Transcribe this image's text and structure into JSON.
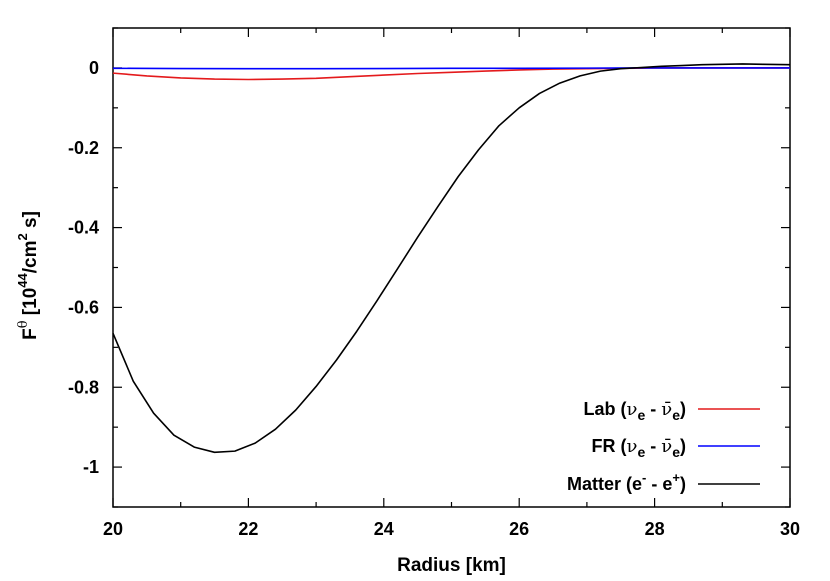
{
  "chart_data": {
    "type": "line",
    "xlabel": "Radius [km]",
    "ylabel": {
      "parts": [
        "F",
        "θ",
        " [10",
        "44",
        "/cm",
        "2",
        " s]"
      ]
    },
    "xlim": [
      20,
      30
    ],
    "ylim": [
      -1.1,
      0.1
    ],
    "x_ticks": [
      20,
      22,
      24,
      26,
      28,
      30
    ],
    "y_ticks": [
      0,
      -0.2,
      -0.4,
      -0.6,
      -0.8,
      -1
    ],
    "x_tick_labels": [
      "20",
      "22",
      "24",
      "26",
      "28",
      "30"
    ],
    "y_tick_labels": [
      "0",
      "-0.2",
      "-0.4",
      "-0.6",
      "-0.8",
      "-1"
    ],
    "grid": false,
    "legend_position": "bottom-right",
    "series": [
      {
        "name": "Lab (νe - ν̄e)",
        "legend_parts": [
          "Lab (",
          "ν",
          "e",
          " - ",
          "ν̄",
          "e",
          ")"
        ],
        "color": "#e41a1c",
        "x": [
          20.0,
          20.5,
          21.0,
          21.5,
          22.0,
          22.5,
          23.0,
          23.5,
          24.0,
          24.5,
          25.0,
          25.5,
          26.0,
          26.5,
          27.0,
          27.5,
          28.0,
          28.5,
          29.0,
          29.5,
          30.0
        ],
        "y": [
          -0.013,
          -0.02,
          -0.025,
          -0.028,
          -0.029,
          -0.028,
          -0.026,
          -0.022,
          -0.018,
          -0.014,
          -0.011,
          -0.008,
          -0.005,
          -0.003,
          -0.002,
          -0.001,
          0.0,
          0.0,
          0.0,
          0.0,
          0.0
        ]
      },
      {
        "name": "FR (νe - ν̄e)",
        "legend_parts": [
          "FR (",
          "ν",
          "e",
          " - ",
          "ν̄",
          "e",
          ")"
        ],
        "color": "#0000ff",
        "x": [
          20.0,
          21.0,
          22.0,
          23.0,
          24.0,
          25.0,
          26.0,
          27.0,
          28.0,
          29.0,
          30.0
        ],
        "y": [
          -0.001,
          -0.0015,
          -0.002,
          -0.002,
          -0.0015,
          -0.001,
          -0.001,
          -0.0005,
          0.0,
          0.0,
          0.0
        ]
      },
      {
        "name": "Matter (e- - e+)",
        "legend_parts": [
          "Matter (e",
          "-",
          " - e",
          "+",
          ")"
        ],
        "color": "#000000",
        "x": [
          20.0,
          20.3,
          20.6,
          20.9,
          21.2,
          21.5,
          21.8,
          22.1,
          22.4,
          22.7,
          23.0,
          23.3,
          23.6,
          23.9,
          24.2,
          24.5,
          24.8,
          25.1,
          25.4,
          25.7,
          26.0,
          26.3,
          26.6,
          26.9,
          27.2,
          27.5,
          27.8,
          28.1,
          28.4,
          28.7,
          29.0,
          29.3,
          29.6,
          30.0
        ],
        "y": [
          -0.665,
          -0.785,
          -0.865,
          -0.92,
          -0.95,
          -0.963,
          -0.96,
          -0.94,
          -0.905,
          -0.857,
          -0.798,
          -0.732,
          -0.66,
          -0.583,
          -0.504,
          -0.424,
          -0.347,
          -0.272,
          -0.205,
          -0.145,
          -0.1,
          -0.064,
          -0.038,
          -0.02,
          -0.008,
          -0.002,
          0.001,
          0.004,
          0.006,
          0.008,
          0.009,
          0.01,
          0.009,
          0.008
        ]
      }
    ]
  }
}
